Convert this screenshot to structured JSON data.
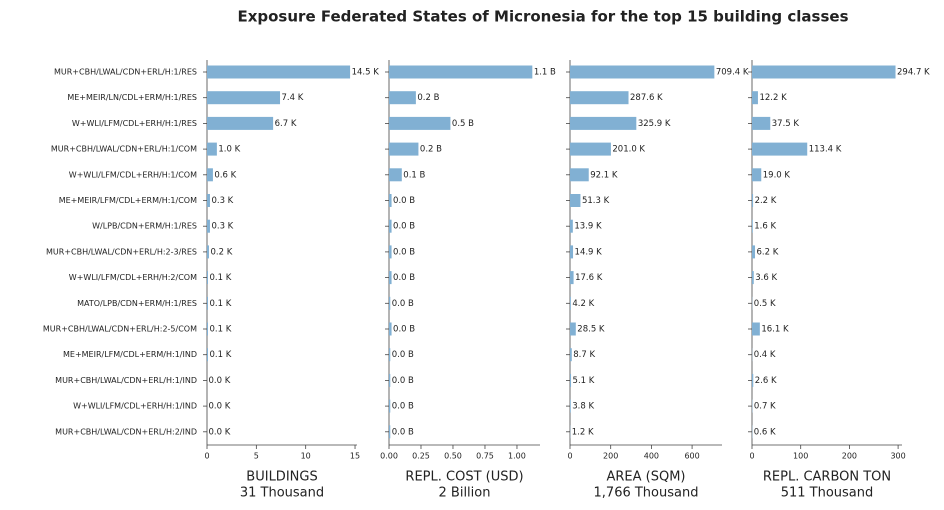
{
  "title": "Exposure Federated States of Micronesia for the top 15 building classes",
  "chart_data": [
    {
      "type": "bar",
      "orientation": "horizontal",
      "color": "#81b0d3",
      "categories": [
        "MUR+CBH/LWAL/CDN+ERL/H:1/RES",
        "ME+MEIR/LN/CDL+ERM/H:1/RES",
        "W+WLI/LFM/CDL+ERH/H:1/RES",
        "MUR+CBH/LWAL/CDN+ERL/H:1/COM",
        "W+WLI/LFM/CDL+ERH/H:1/COM",
        "ME+MEIR/LFM/CDL+ERM/H:1/COM",
        "W/LPB/CDN+ERM/H:1/RES",
        "MUR+CBH/LWAL/CDN+ERL/H:2-3/RES",
        "W+WLI/LFM/CDL+ERH/H:2/COM",
        "MATO/LPB/CDN+ERM/H:1/RES",
        "MUR+CBH/LWAL/CDN+ERL/H:2-5/COM",
        "ME+MEIR/LFM/CDL+ERM/H:1/IND",
        "MUR+CBH/LWAL/CDN+ERL/H:1/IND",
        "W+WLI/LFM/CDL+ERH/H:1/IND",
        "MUR+CBH/LWAL/CDN+ERL/H:2/IND"
      ],
      "values": [
        14.5,
        7.4,
        6.7,
        1.0,
        0.6,
        0.3,
        0.3,
        0.2,
        0.1,
        0.1,
        0.1,
        0.1,
        0.0,
        0.0,
        0.0
      ],
      "value_labels": [
        "14.5 K",
        "7.4 K",
        "6.7 K",
        "1.0 K",
        "0.6 K",
        "0.3 K",
        "0.3 K",
        "0.2 K",
        "0.1 K",
        "0.1 K",
        "0.1 K",
        "0.1 K",
        "0.0 K",
        "0.0 K",
        "0.0 K"
      ],
      "xlim": [
        0,
        15.2
      ],
      "xticks": [
        0,
        5,
        10,
        15
      ],
      "xlabel": [
        "BUILDINGS",
        "31 Thousand"
      ]
    },
    {
      "type": "bar",
      "orientation": "horizontal",
      "color": "#81b0d3",
      "values": [
        1.12,
        0.21,
        0.48,
        0.23,
        0.1,
        0.02,
        0.02,
        0.02,
        0.02,
        0.01,
        0.02,
        0.01,
        0.01,
        0.01,
        0.01
      ],
      "value_labels": [
        "1.1 B",
        "0.2 B",
        "0.5 B",
        "0.2 B",
        "0.1 B",
        "0.0 B",
        "0.0 B",
        "0.0 B",
        "0.0 B",
        "0.0 B",
        "0.0 B",
        "0.0 B",
        "0.0 B",
        "0.0 B",
        "0.0 B"
      ],
      "xlim": [
        0,
        1.18
      ],
      "xticks": [
        {
          "value": 0,
          "label": "0.00"
        },
        0.25,
        {
          "value": 0.5,
          "label": "0.50"
        },
        0.75,
        {
          "value": 1,
          "label": "1.00"
        }
      ],
      "xlabel": [
        "REPL. COST (USD)",
        "2 Billion"
      ]
    },
    {
      "type": "bar",
      "orientation": "horizontal",
      "color": "#81b0d3",
      "values": [
        709.4,
        287.6,
        325.9,
        201.0,
        92.1,
        51.3,
        13.9,
        14.9,
        17.6,
        4.2,
        28.5,
        8.7,
        5.1,
        3.8,
        1.2
      ],
      "value_labels": [
        "709.4 K",
        "287.6 K",
        "325.9 K",
        "201.0 K",
        "92.1 K",
        "51.3 K",
        "13.9 K",
        "14.9 K",
        "17.6 K",
        "4.2 K",
        "28.5 K",
        "8.7 K",
        "5.1 K",
        "3.8 K",
        "1.2 K"
      ],
      "xlim": [
        0,
        747
      ],
      "xticks": [
        0,
        200,
        400,
        600
      ],
      "xlabel": [
        "AREA (SQM)",
        "1,766 Thousand"
      ]
    },
    {
      "type": "bar",
      "orientation": "horizontal",
      "color": "#81b0d3",
      "values": [
        294.7,
        12.2,
        37.5,
        113.4,
        19.0,
        2.2,
        1.6,
        6.2,
        3.6,
        0.5,
        16.1,
        0.4,
        2.6,
        0.7,
        0.6
      ],
      "value_labels": [
        "294.7 K",
        "12.2 K",
        "37.5 K",
        "113.4 K",
        "19.0 K",
        "2.2 K",
        "1.6 K",
        "6.2 K",
        "3.6 K",
        "0.5 K",
        "16.1 K",
        "0.4 K",
        "2.6 K",
        "0.7 K",
        "0.6 K"
      ],
      "xlim": [
        0,
        308
      ],
      "xticks": [
        0,
        100,
        200,
        300
      ],
      "xlabel": [
        "REPL. CARBON TON",
        "511 Thousand"
      ]
    }
  ]
}
